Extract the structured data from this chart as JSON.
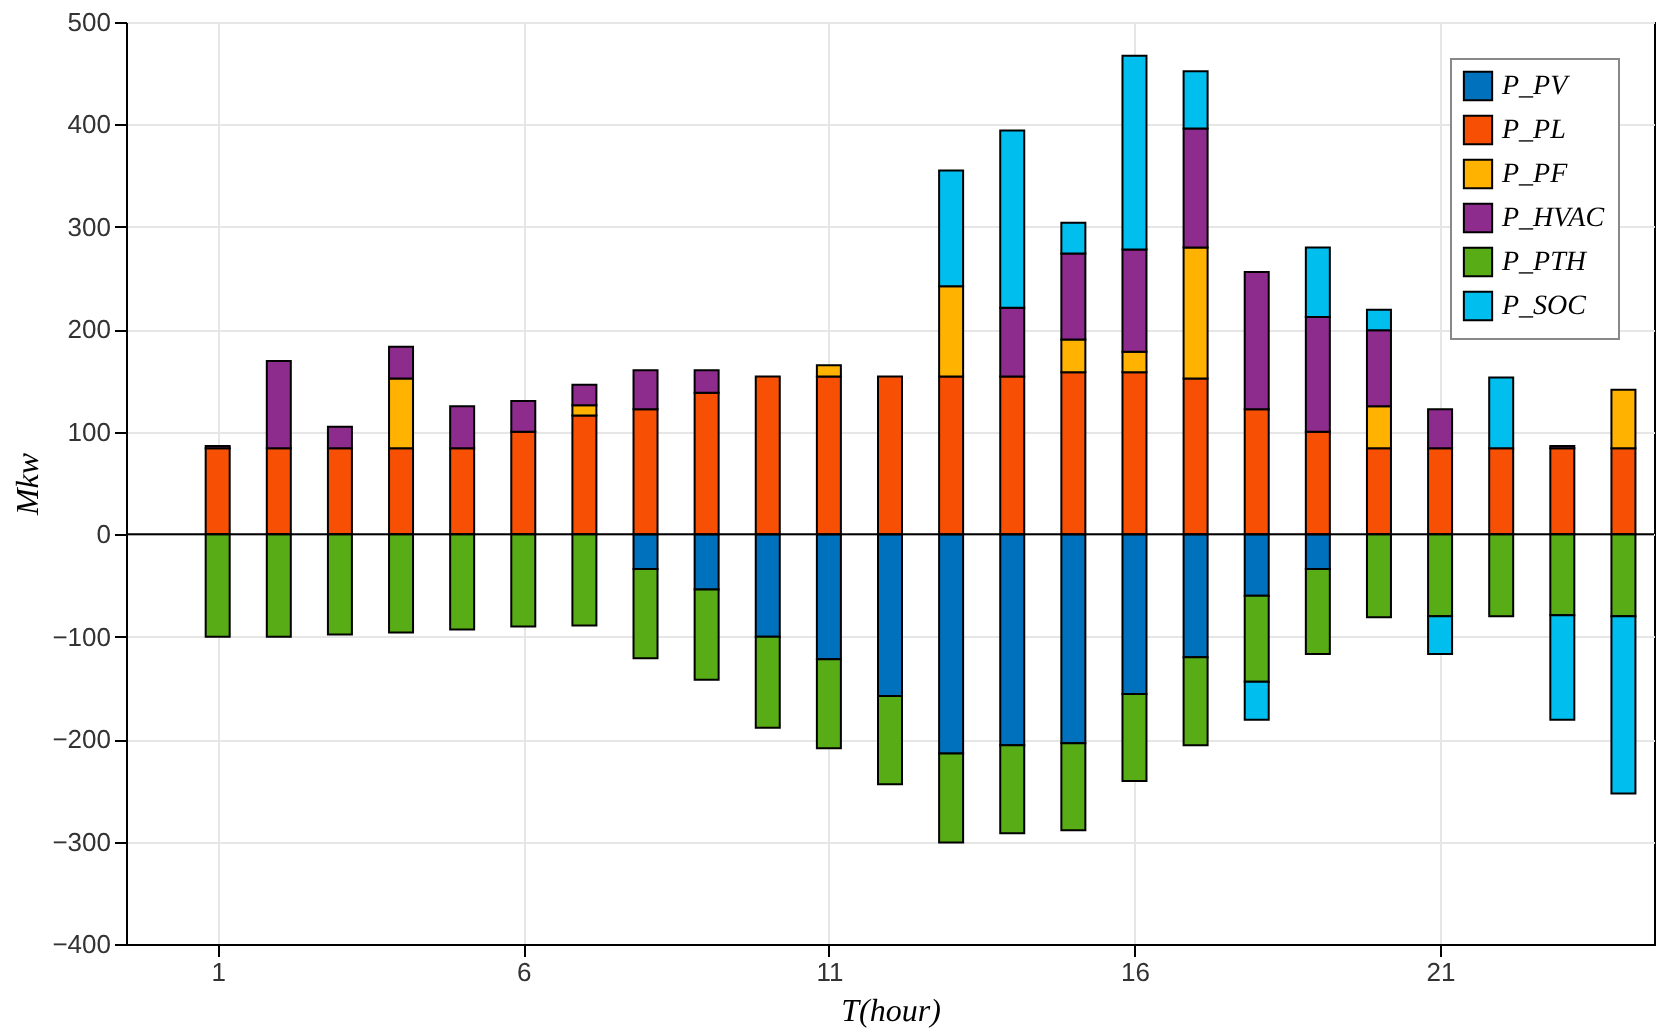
{
  "chart_data": {
    "type": "bar",
    "stacked": true,
    "xlabel": "T(hour)",
    "ylabel": "Mkw",
    "x": [
      1,
      2,
      3,
      4,
      5,
      6,
      7,
      8,
      9,
      10,
      11,
      12,
      13,
      14,
      15,
      16,
      17,
      18,
      19,
      20,
      21,
      22,
      23,
      24
    ],
    "xlim": [
      -0.5,
      24.5
    ],
    "xticks": [
      1,
      6,
      11,
      16,
      21
    ],
    "ylim": [
      -400,
      500
    ],
    "yticks": [
      -400,
      -300,
      -200,
      -100,
      0,
      100,
      200,
      300,
      400,
      500
    ],
    "grid": true,
    "legend": "top right",
    "series": [
      {
        "name": "P_PV",
        "color": "#0072bd",
        "values": [
          null,
          null,
          null,
          null,
          null,
          null,
          null,
          -34,
          -54,
          -100,
          -122,
          -158,
          -214,
          -206,
          -204,
          -156,
          -120,
          -60,
          -34,
          null,
          null,
          null,
          null,
          null
        ]
      },
      {
        "name": "P_PL",
        "color": "#f75005",
        "values": [
          84,
          84,
          84,
          84,
          84,
          100,
          116,
          122,
          138,
          154,
          154,
          154,
          154,
          154,
          158,
          158,
          152,
          122,
          100,
          84,
          84,
          84,
          84,
          84
        ]
      },
      {
        "name": "P_PF",
        "color": "#ffb300",
        "values": [
          null,
          null,
          null,
          68,
          null,
          null,
          10,
          null,
          null,
          null,
          11,
          null,
          88,
          null,
          32,
          20,
          128,
          null,
          null,
          41,
          null,
          null,
          null,
          57
        ]
      },
      {
        "name": "P_HVAC",
        "color": "#8e2c8e",
        "values": [
          2,
          85,
          21,
          31,
          41,
          30,
          20,
          38,
          22,
          null,
          null,
          null,
          null,
          67,
          84,
          100,
          116,
          134,
          112,
          74,
          38,
          null,
          2,
          null
        ]
      },
      {
        "name": "P_PTH",
        "color": "#58ac16",
        "values": [
          -100,
          -100,
          -98,
          -96,
          -93,
          -90,
          -89,
          -87,
          -88,
          -89,
          -87,
          -86,
          -87,
          -86,
          -85,
          -85,
          -86,
          -84,
          -83,
          -81,
          -80,
          -80,
          -79,
          -80
        ]
      },
      {
        "name": "P_SOC",
        "color": "#00bfef",
        "values": [
          null,
          null,
          null,
          null,
          null,
          null,
          null,
          null,
          null,
          null,
          null,
          null,
          113,
          173,
          30,
          189,
          56,
          -37,
          68,
          20,
          -37,
          69,
          -102,
          -173
        ]
      }
    ]
  }
}
